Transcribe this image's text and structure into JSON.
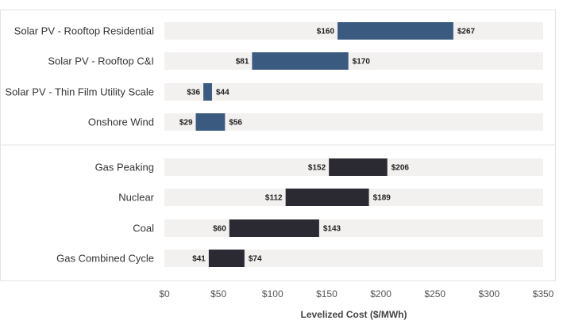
{
  "chart_data": {
    "type": "bar",
    "orientation": "horizontal",
    "subtype": "range",
    "xlabel": "Levelized Cost ($/MWh)",
    "xlim": [
      0,
      350
    ],
    "xticks": [
      0,
      50,
      100,
      150,
      200,
      250,
      300,
      350
    ],
    "xtick_labels": [
      "$0",
      "$50",
      "$100",
      "$150",
      "$200",
      "$250",
      "$300",
      "$350"
    ],
    "grid": false,
    "groups": [
      {
        "color": "#3b5a80",
        "items": [
          {
            "category": "Solar PV - Rooftop Residential",
            "low": 160,
            "high": 267,
            "low_label": "$160",
            "high_label": "$267"
          },
          {
            "category": "Solar PV - Rooftop C&I",
            "low": 81,
            "high": 170,
            "low_label": "$81",
            "high_label": "$170"
          },
          {
            "category": "Solar PV - Thin Film Utility Scale",
            "low": 36,
            "high": 44,
            "low_label": "$36",
            "high_label": "$44"
          },
          {
            "category": "Onshore Wind",
            "low": 29,
            "high": 56,
            "low_label": "$29",
            "high_label": "$56"
          }
        ]
      },
      {
        "color": "#2b2a32",
        "items": [
          {
            "category": "Gas Peaking",
            "low": 152,
            "high": 206,
            "low_label": "$152",
            "high_label": "$206"
          },
          {
            "category": "Nuclear",
            "low": 112,
            "high": 189,
            "low_label": "$112",
            "high_label": "$189"
          },
          {
            "category": "Coal",
            "low": 60,
            "high": 143,
            "low_label": "$60",
            "high_label": "$143"
          },
          {
            "category": "Gas Combined Cycle",
            "low": 41,
            "high": 74,
            "low_label": "$41",
            "high_label": "$74"
          }
        ]
      }
    ],
    "track_color": "#f3f1f0"
  }
}
